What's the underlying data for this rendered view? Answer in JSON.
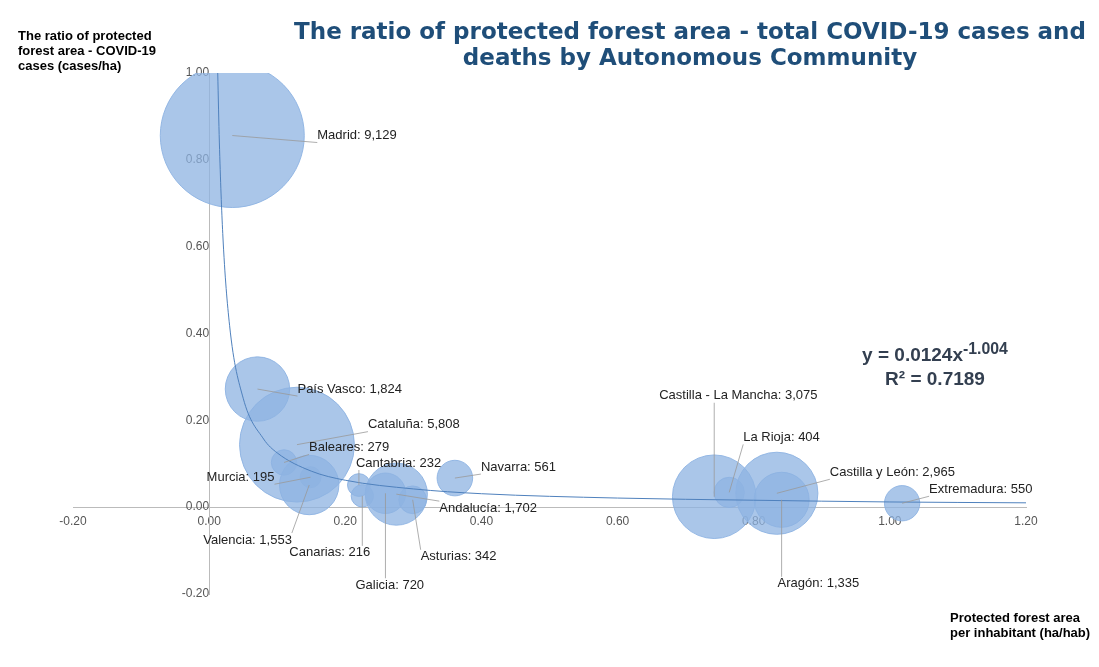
{
  "chart_data": {
    "type": "bubble",
    "title": "The ratio of protected forest area - total COVID-19 cases and deaths by Autonomous Community",
    "xlabel": "Protected forest area per inhabitant (ha/hab)",
    "ylabel": "The ratio of protected forest area - COVID-19 cases (cases/ha)",
    "xlim": [
      -0.2,
      1.2
    ],
    "xticks": [
      {
        "value": -0.2,
        "label": "-0.20"
      },
      {
        "value": 0,
        "label": "0.00"
      },
      {
        "value": 0.2,
        "label": "0.20"
      },
      {
        "value": 0.4,
        "label": "0.40"
      },
      {
        "value": 0.6,
        "label": "0.60"
      },
      {
        "value": 0.8,
        "label": "0.80"
      },
      {
        "value": 1,
        "label": "1.00"
      },
      {
        "value": 1.2,
        "label": "1.20"
      }
    ],
    "ylim": [
      -0.2,
      1.0
    ],
    "yticks": [
      {
        "value": -0.2,
        "label": "-0.20"
      },
      {
        "value": 0,
        "label": "0.00"
      },
      {
        "value": 0.2,
        "label": "0.20"
      },
      {
        "value": 0.4,
        "label": "0.40"
      },
      {
        "value": 0.6,
        "label": "0.60"
      },
      {
        "value": 0.8,
        "label": "0.80"
      },
      {
        "value": 1,
        "label": "1.00"
      }
    ],
    "grid": false,
    "legend": false,
    "series": [
      {
        "color": "#8db3e2",
        "x": [
          0.034,
          0.071,
          0.129,
          0.11,
          0.149,
          0.147,
          0.22,
          0.225,
          0.259,
          0.275,
          0.299,
          0.361,
          0.742,
          0.764,
          0.834,
          0.841,
          1.018
        ],
        "values": [
          0.856,
          0.272,
          0.144,
          0.103,
          0.069,
          0.051,
          0.051,
          0.026,
          0.032,
          0.03,
          0.017,
          0.067,
          0.024,
          0.034,
          0.032,
          0.017,
          0.009
        ],
        "sizes": [
          1,
          0.2,
          0.636,
          0.031,
          0.021,
          0.17,
          0.025,
          0.024,
          0.079,
          0.186,
          0.037,
          0.061,
          0.337,
          0.044,
          0.325,
          0.146,
          0.06
        ]
      },
      {
        "type": "line",
        "color": "#4f81bd",
        "x": [
          0.0126,
          0.015,
          0.02,
          0.03,
          0.05,
          0.08,
          0.1,
          0.15,
          0.2,
          0.3,
          0.4,
          0.6,
          0.8,
          1.0,
          1.2
        ],
        "values": [
          1.0,
          0.841,
          0.63,
          0.419,
          0.251,
          0.157,
          0.125,
          0.083,
          0.062,
          0.042,
          0.031,
          0.021,
          0.016,
          0.012,
          0.01
        ]
      }
    ],
    "annotations": [
      {
        "text": "Madrid: 9,129",
        "x": 0.034,
        "y": 0.856
      },
      {
        "text": "País Vasco: 1,824",
        "x": 0.071,
        "y": 0.272
      },
      {
        "text": "Cataluña: 5,808",
        "x": 0.129,
        "y": 0.144
      },
      {
        "text": "Baleares: 279",
        "x": 0.11,
        "y": 0.103
      },
      {
        "text": "Murcia: 195",
        "x": 0.149,
        "y": 0.069
      },
      {
        "text": "Valencia: 1,553",
        "x": 0.147,
        "y": 0.051
      },
      {
        "text": "Cantabria: 232",
        "x": 0.22,
        "y": 0.051
      },
      {
        "text": "Canarias: 216",
        "x": 0.225,
        "y": 0.026
      },
      {
        "text": "Galicia: 720",
        "x": 0.259,
        "y": 0.032
      },
      {
        "text": "Andalucía: 1,702",
        "x": 0.275,
        "y": 0.03
      },
      {
        "text": "Asturias: 342",
        "x": 0.299,
        "y": 0.017
      },
      {
        "text": "Navarra: 561",
        "x": 0.361,
        "y": 0.067
      },
      {
        "text": "Castilla - La Mancha: 3,075",
        "x": 0.742,
        "y": 0.024
      },
      {
        "text": "La Rioja: 404",
        "x": 0.764,
        "y": 0.034
      },
      {
        "text": "Castilla y León: 2,965",
        "x": 0.834,
        "y": 0.032
      },
      {
        "text": "Aragón: 1,335",
        "x": 0.841,
        "y": 0.017
      },
      {
        "text": "Extremadura: 550",
        "x": 1.018,
        "y": 0.009
      },
      "y = 0.0124x$^{-1.004}$",
      "R² = 0.7189"
    ]
  }
}
